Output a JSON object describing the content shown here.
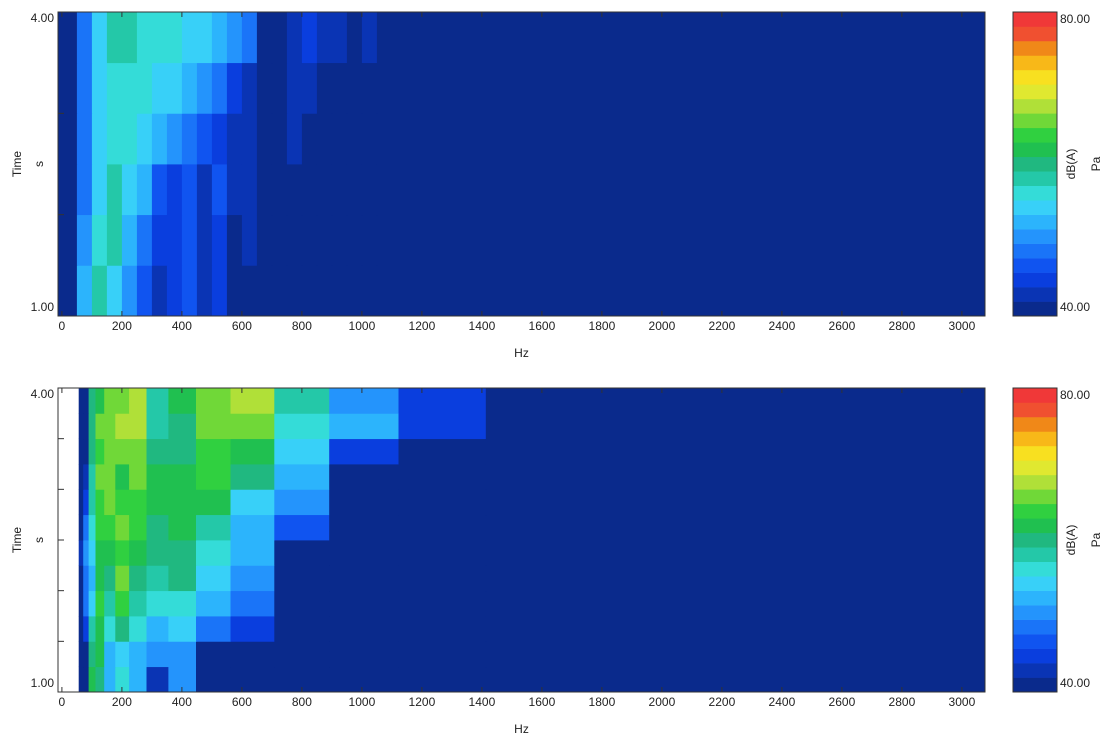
{
  "chart_data": [
    {
      "type": "heatmap",
      "xlabel": "Hz",
      "ylabel": "Time",
      "ylabel_unit": "s",
      "colorbar_label": "dB(A)",
      "colorbar_unit": "Pa",
      "xlim": [
        -13,
        3077
      ],
      "ylim": [
        1,
        4
      ],
      "xticks": [
        0,
        200,
        400,
        600,
        800,
        1000,
        1200,
        1400,
        1600,
        1800,
        2000,
        2200,
        2400,
        2600,
        2800,
        3000
      ],
      "yticks": [
        {
          "value": 1,
          "label": "1.00"
        },
        {
          "value": 4,
          "label": "4.00"
        }
      ],
      "minor_yticks": [
        2,
        3
      ],
      "clim": [
        40,
        80
      ],
      "cticks": [
        {
          "value": 40,
          "label": "40.00"
        },
        {
          "value": 80,
          "label": "80.00"
        }
      ],
      "colors": [
        "#0a2a8c",
        "#0a34b4",
        "#0a3ede",
        "#1054f0",
        "#1a74f8",
        "#2494fc",
        "#2cb4fc",
        "#38d0f8",
        "#34dcd8",
        "#24c8a8",
        "#20b880",
        "#20c050",
        "#30d040",
        "#70d838",
        "#b0e038",
        "#e0e830",
        "#f8e020",
        "#f8b818",
        "#f08818",
        "#f05030",
        "#f03838"
      ],
      "x_edges": [
        -13,
        50,
        100,
        150,
        200,
        250,
        300,
        350,
        400,
        450,
        500,
        550,
        600,
        650,
        700,
        750,
        800,
        850,
        900,
        950,
        1000,
        1050,
        3077
      ],
      "y_edges": [
        1,
        1.5,
        2,
        2.5,
        3,
        3.5,
        4
      ],
      "values": [
        [
          40,
          52,
          58,
          55,
          50,
          46,
          42,
          44,
          46,
          42,
          44,
          40,
          40,
          40,
          40,
          40,
          40,
          40,
          40,
          40,
          40,
          40
        ],
        [
          40,
          50,
          56,
          58,
          52,
          48,
          44,
          44,
          46,
          42,
          45,
          40,
          42,
          40,
          40,
          40,
          40,
          40,
          40,
          40,
          40,
          40
        ],
        [
          40,
          48,
          54,
          58,
          55,
          52,
          46,
          45,
          46,
          43,
          46,
          42,
          42,
          40,
          40,
          40,
          40,
          40,
          40,
          40,
          40,
          40
        ],
        [
          40,
          48,
          54,
          57,
          56,
          55,
          52,
          50,
          48,
          46,
          45,
          42,
          42,
          40,
          40,
          42,
          40,
          40,
          40,
          40,
          40,
          40
        ],
        [
          40,
          48,
          55,
          57,
          57,
          56,
          55,
          54,
          52,
          50,
          48,
          44,
          42,
          40,
          40,
          42,
          42,
          40,
          40,
          40,
          40,
          40
        ],
        [
          40,
          48,
          55,
          58,
          58,
          57,
          57,
          56,
          55,
          54,
          52,
          50,
          48,
          40,
          40,
          42,
          44,
          42,
          42,
          40,
          42,
          40
        ]
      ]
    },
    {
      "type": "heatmap",
      "xlabel": "Hz",
      "ylabel": "Time",
      "ylabel_unit": "s",
      "colorbar_label": "dB(A)",
      "colorbar_unit": "Pa",
      "xlim": [
        -13,
        3077
      ],
      "ylim": [
        1,
        4
      ],
      "xticks": [
        0,
        200,
        400,
        600,
        800,
        1000,
        1200,
        1400,
        1600,
        1800,
        2000,
        2200,
        2400,
        2600,
        2800,
        3000
      ],
      "yticks": [
        {
          "value": 1,
          "label": "1.00"
        },
        {
          "value": 4,
          "label": "4.00"
        }
      ],
      "minor_yticks": [
        1.5,
        2,
        2.5,
        3,
        3.5
      ],
      "clim": [
        40,
        80
      ],
      "cticks": [
        {
          "value": 40,
          "label": "40.00"
        },
        {
          "value": 80,
          "label": "80.00"
        }
      ],
      "colors": [
        "#0a2a8c",
        "#0a34b4",
        "#0a3ede",
        "#1054f0",
        "#1a74f8",
        "#2494fc",
        "#2cb4fc",
        "#38d0f8",
        "#34dcd8",
        "#24c8a8",
        "#20b880",
        "#20c050",
        "#30d040",
        "#70d838",
        "#b0e038",
        "#e0e830",
        "#f8e020",
        "#f8b818",
        "#f08818",
        "#f05030",
        "#f03838"
      ],
      "x_edges": [
        -13,
        56,
        71,
        89,
        112,
        141,
        178,
        224,
        282,
        355,
        447,
        562,
        708,
        891,
        1122,
        1413,
        3077
      ],
      "y_edges": [
        1,
        1.25,
        1.5,
        1.75,
        2,
        2.25,
        2.5,
        2.75,
        3,
        3.25,
        3.5,
        3.75,
        4
      ],
      "values": [
        [
          null,
          40,
          40,
          62,
          60,
          52,
          56,
          52,
          42,
          50,
          40,
          40,
          40,
          40,
          40,
          40
        ],
        [
          null,
          40,
          40,
          60,
          62,
          52,
          54,
          52,
          50,
          50,
          40,
          40,
          40,
          40,
          40,
          40
        ],
        [
          null,
          40,
          44,
          58,
          62,
          56,
          60,
          56,
          52,
          54,
          48,
          44,
          40,
          40,
          40,
          40
        ],
        [
          null,
          40,
          48,
          54,
          64,
          58,
          64,
          58,
          56,
          56,
          52,
          48,
          40,
          40,
          40,
          40
        ],
        [
          null,
          40,
          48,
          52,
          62,
          60,
          66,
          60,
          58,
          60,
          54,
          50,
          40,
          40,
          40,
          40
        ],
        [
          null,
          42,
          50,
          54,
          62,
          62,
          64,
          62,
          60,
          60,
          56,
          52,
          40,
          40,
          40,
          40
        ],
        [
          null,
          40,
          48,
          56,
          64,
          64,
          66,
          64,
          60,
          62,
          58,
          52,
          46,
          40,
          40,
          40
        ],
        [
          null,
          40,
          44,
          58,
          64,
          66,
          64,
          64,
          62,
          62,
          62,
          54,
          50,
          40,
          40,
          40
        ],
        [
          null,
          40,
          42,
          58,
          66,
          66,
          62,
          66,
          62,
          62,
          64,
          60,
          52,
          40,
          40,
          40
        ],
        [
          null,
          40,
          40,
          60,
          64,
          66,
          66,
          66,
          60,
          60,
          64,
          62,
          54,
          44,
          40,
          40
        ],
        [
          null,
          40,
          40,
          60,
          66,
          66,
          68,
          68,
          58,
          60,
          66,
          66,
          56,
          52,
          44,
          40
        ],
        [
          null,
          40,
          40,
          60,
          62,
          66,
          66,
          68,
          58,
          62,
          66,
          68,
          58,
          50,
          44,
          40
        ]
      ]
    }
  ]
}
